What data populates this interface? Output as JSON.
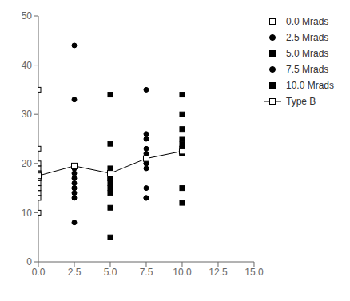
{
  "chart_data": {
    "type": "scatter",
    "xlim": [
      0.0,
      15.0
    ],
    "ylim": [
      0,
      50
    ],
    "xticks": [
      {
        "value": 0.0,
        "label": "0.0"
      },
      2.5,
      {
        "value": 5.0,
        "label": "5.0"
      },
      7.5,
      {
        "value": 10.0,
        "label": "10.0"
      },
      12.5,
      {
        "value": 15.0,
        "label": "15.0"
      }
    ],
    "yticks": [
      0,
      10,
      20,
      30,
      40,
      50
    ],
    "grid": false,
    "legend": "right",
    "series": [
      {
        "name": "0.0 Mrads",
        "color": "#000000",
        "marker": "open-square",
        "x": [
          0.0,
          0.0,
          0.0,
          0.0,
          0.0,
          0.0,
          0.0,
          0.0,
          0.0,
          0.0,
          0.0,
          0.0,
          0.0
        ],
        "values": [
          10,
          13,
          14,
          15,
          16,
          17,
          17,
          18,
          18,
          19,
          20,
          23,
          35
        ]
      },
      {
        "name": "2.5 Mrads",
        "color": "#000000",
        "marker": "circle",
        "x": [
          2.5,
          2.5,
          2.5,
          2.5,
          2.5,
          2.5,
          2.5,
          2.5,
          2.5,
          2.5,
          2.5,
          2.5
        ],
        "values": [
          44,
          33,
          19,
          19,
          18,
          17,
          16,
          15,
          15,
          14,
          13,
          8
        ]
      },
      {
        "name": "5.0 Mrads",
        "color": "#000000",
        "marker": "square",
        "x": [
          5.0,
          5.0,
          5.0,
          5.0,
          5.0,
          5.0,
          5.0,
          5.0,
          5.0,
          5.0,
          5.0
        ],
        "values": [
          34,
          24,
          19,
          18,
          17,
          17,
          16,
          15,
          14,
          11,
          5
        ]
      },
      {
        "name": "7.5 Mrads",
        "color": "#000000",
        "marker": "circle",
        "x": [
          7.5,
          7.5,
          7.5,
          7.5,
          7.5,
          7.5,
          7.5,
          7.5,
          7.5,
          7.5,
          7.5,
          7.5
        ],
        "values": [
          35,
          26,
          25,
          23,
          22,
          21,
          20,
          20,
          19,
          15,
          13,
          13
        ]
      },
      {
        "name": "10.0 Mrads",
        "color": "#000000",
        "marker": "square",
        "x": [
          10.0,
          10.0,
          10.0,
          10.0,
          10.0,
          10.0,
          10.0,
          10.0,
          10.0,
          10.0,
          10.0
        ],
        "values": [
          34,
          30,
          27,
          25,
          24,
          23,
          23,
          22,
          22,
          15,
          12
        ]
      },
      {
        "name": "Type B",
        "type": "line",
        "color": "#000000",
        "marker": "open-square",
        "x": [
          0.0,
          2.5,
          5.0,
          7.5,
          10.0
        ],
        "values": [
          17.5,
          19.5,
          18.0,
          21.0,
          22.5
        ]
      }
    ]
  }
}
